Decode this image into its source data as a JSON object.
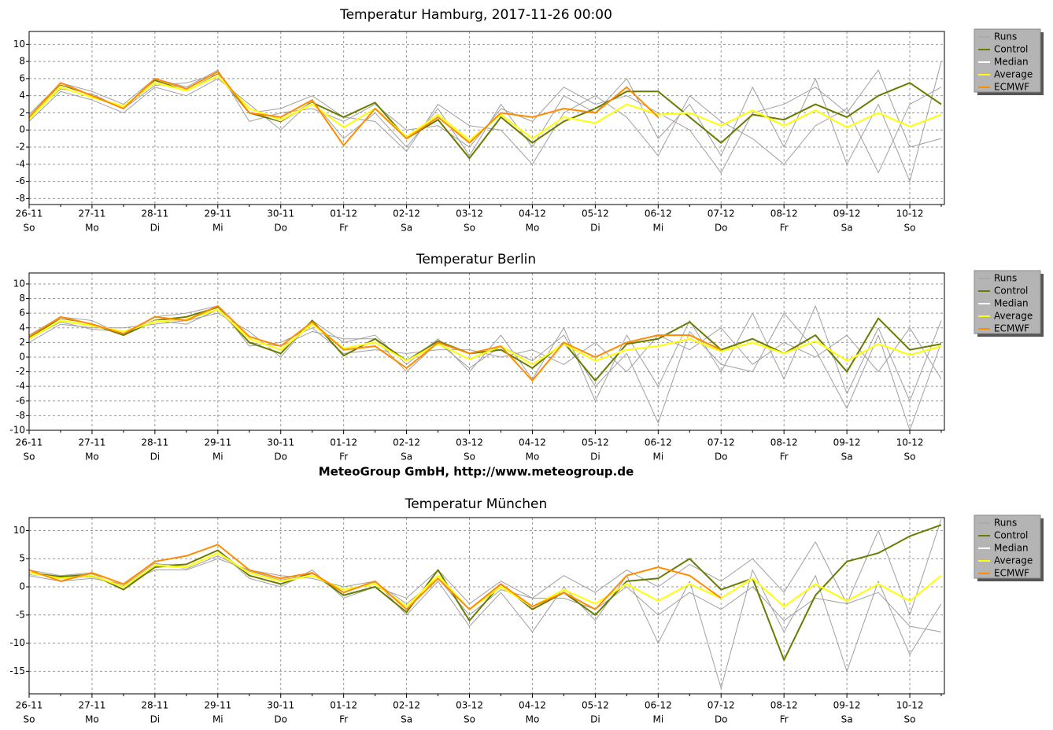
{
  "chart_data": [
    {
      "type": "line",
      "title": "Temperatur Hamburg, 2017-11-26 00:00",
      "categories": [
        "26-11",
        null,
        "27-11",
        null,
        "28-11",
        null,
        "29-11",
        null,
        "30-11",
        null,
        "01-12",
        null,
        "02-12",
        null,
        "03-12",
        null,
        "04-12",
        null,
        "05-12",
        null,
        "06-12",
        null,
        "07-12",
        null,
        "08-12",
        null,
        "09-12",
        null,
        "10-12",
        null
      ],
      "weekdays": [
        "So",
        null,
        "Mo",
        null,
        "Di",
        null,
        "Mi",
        null,
        "Do",
        null,
        "Fr",
        null,
        "Sa",
        null,
        "So",
        null,
        "Mo",
        null,
        "Di",
        null,
        "Mi",
        null,
        "Do",
        null,
        "Fr",
        null,
        "Sa",
        null,
        "So",
        null
      ],
      "ylim": [
        -8.7,
        11.5
      ],
      "yticks": [
        -8,
        -6,
        -4,
        -2,
        0,
        2,
        4,
        6,
        8,
        10
      ],
      "grid": true,
      "series": [
        {
          "name": "Runs",
          "color": "#a0a0a0",
          "values": [
            [
              1.0,
              4.5,
              3.5,
              2.0,
              5.0,
              4.0,
              6.0,
              3.0,
              0.0,
              3.5,
              -1.0,
              2.0,
              -2.0,
              2.5,
              -3.0,
              3.0,
              -2.0,
              4.0,
              2.0,
              6.0,
              -1.0,
              3.0,
              -3.0,
              5.0,
              -2.0,
              6.0,
              -4.0,
              3.0,
              -6.0,
              8.0
            ],
            [
              1.8,
              5.5,
              4.5,
              3.0,
              6.0,
              5.0,
              7.0,
              1.0,
              2.0,
              2.5,
              1.0,
              3.0,
              0.0,
              0.5,
              -2.0,
              2.5,
              1.0,
              5.0,
              3.0,
              4.0,
              2.0,
              0.0,
              -5.0,
              2.0,
              3.0,
              5.0,
              2.0,
              7.0,
              -2.0,
              -1.0
            ],
            [
              1.5,
              4.8,
              4.2,
              2.5,
              5.2,
              5.5,
              6.5,
              2.0,
              2.5,
              4.0,
              1.5,
              1.0,
              -2.5,
              3.0,
              0.5,
              0.0,
              -4.0,
              2.0,
              4.0,
              1.5,
              -3.0,
              4.0,
              1.0,
              -1.0,
              -4.0,
              0.5,
              2.5,
              -5.0,
              3.0,
              5.0
            ]
          ]
        },
        {
          "name": "Control",
          "color": "#6b7a00",
          "values": [
            1.3,
            5.2,
            4.0,
            2.6,
            5.8,
            4.5,
            6.5,
            2.0,
            1.0,
            3.2,
            1.5,
            3.2,
            -1.0,
            1.2,
            -3.3,
            1.5,
            -1.5,
            1.0,
            2.5,
            4.5,
            4.5,
            1.5,
            -1.5,
            1.8,
            1.2,
            3.0,
            1.5,
            4.0,
            5.5,
            3.0
          ]
        },
        {
          "name": "Median",
          "color": "#ffffff",
          "values": [
            1.3,
            5.1,
            3.9,
            2.7,
            5.6,
            4.5,
            6.4,
            2.3,
            1.1,
            3.1,
            0.2,
            2.6,
            -0.9,
            1.7,
            -1.3,
            1.9,
            -1.1,
            1.4,
            0.9,
            3.1,
            1.7,
            2.1,
            0.4,
            2.4,
            0.4,
            2.4,
            0.2,
            2.1,
            0.3,
            1.9
          ]
        },
        {
          "name": "Average",
          "color": "#ffff00",
          "values": [
            1.3,
            5.0,
            3.8,
            2.8,
            5.5,
            4.6,
            6.3,
            2.5,
            1.2,
            3.0,
            0.3,
            2.5,
            -0.8,
            1.8,
            -1.2,
            1.8,
            -1.0,
            1.5,
            0.8,
            3.0,
            1.8,
            2.0,
            0.5,
            2.3,
            0.5,
            2.3,
            0.3,
            2.0,
            0.4,
            1.8
          ]
        },
        {
          "name": "ECMWF",
          "color": "#ff8c00",
          "values": [
            1.5,
            5.5,
            4.0,
            2.5,
            6.0,
            4.8,
            6.8,
            2.0,
            1.5,
            3.5,
            -1.8,
            2.5,
            -1.0,
            1.5,
            -1.5,
            2.0,
            1.5,
            2.5,
            2.0,
            5.0,
            1.5,
            null,
            null,
            null,
            null,
            null,
            null,
            null,
            null,
            null
          ]
        }
      ]
    },
    {
      "type": "line",
      "title": "Temperatur Berlin",
      "categories": [
        "26-11",
        null,
        "27-11",
        null,
        "28-11",
        null,
        "29-11",
        null,
        "30-11",
        null,
        "01-12",
        null,
        "02-12",
        null,
        "03-12",
        null,
        "04-12",
        null,
        "05-12",
        null,
        "06-12",
        null,
        "07-12",
        null,
        "08-12",
        null,
        "09-12",
        null,
        "10-12",
        null
      ],
      "weekdays": [
        "So",
        null,
        "Mo",
        null,
        "Di",
        null,
        "Mi",
        null,
        "Do",
        null,
        "Fr",
        null,
        "Sa",
        null,
        "So",
        null,
        "Mo",
        null,
        "Di",
        null,
        "Mi",
        null,
        "Do",
        null,
        "Fr",
        null,
        "Sa",
        null,
        "So",
        null
      ],
      "ylim": [
        -10,
        11.5
      ],
      "yticks": [
        -10,
        -8,
        -6,
        -4,
        -2,
        0,
        2,
        4,
        6,
        8,
        10
      ],
      "grid": true,
      "series": [
        {
          "name": "Runs",
          "color": "#a0a0a0",
          "values": [
            [
              2.0,
              4.5,
              4.0,
              4.0,
              4.5,
              5.0,
              6.0,
              3.5,
              0.0,
              5.0,
              2.0,
              3.0,
              -1.0,
              2.5,
              -2.0,
              3.0,
              -3.0,
              4.0,
              -6.0,
              3.0,
              -4.0,
              5.0,
              -2.0,
              6.0,
              -3.0,
              7.0,
              -5.0,
              4.0,
              -6.0,
              5.0
            ],
            [
              3.0,
              5.5,
              5.0,
              3.0,
              5.5,
              6.0,
              7.0,
              1.5,
              2.0,
              4.0,
              0.5,
              1.0,
              0.5,
              1.0,
              1.0,
              0.0,
              1.0,
              -1.0,
              2.0,
              -2.0,
              3.0,
              1.0,
              4.0,
              -1.0,
              2.0,
              0.0,
              3.0,
              -2.0,
              4.0,
              -3.0
            ],
            [
              2.5,
              4.8,
              3.8,
              3.5,
              5.0,
              4.5,
              6.5,
              2.0,
              1.5,
              3.5,
              2.5,
              2.5,
              -2.0,
              2.0,
              -1.5,
              1.5,
              -0.5,
              3.0,
              -4.0,
              0.5,
              -9.0,
              3.5,
              -1.0,
              -2.0,
              6.0,
              1.0,
              -7.0,
              3.0,
              -10.0,
              2.0
            ]
          ]
        },
        {
          "name": "Control",
          "color": "#6b7a00",
          "values": [
            2.7,
            5.2,
            4.5,
            3.0,
            5.0,
            5.5,
            6.8,
            2.0,
            0.5,
            5.0,
            0.2,
            2.5,
            -0.5,
            2.2,
            0.5,
            1.0,
            -1.5,
            2.0,
            -3.2,
            1.8,
            2.5,
            4.8,
            1.0,
            2.5,
            0.5,
            3.0,
            -2.0,
            5.3,
            1.0,
            1.8
          ]
        },
        {
          "name": "Median",
          "color": "#ffffff",
          "values": [
            2.4,
            5.1,
            4.4,
            3.4,
            4.9,
            5.1,
            6.6,
            2.4,
            0.9,
            4.6,
            1.1,
            2.1,
            -0.6,
            1.9,
            -0.4,
            1.6,
            -1.1,
            1.9,
            -0.6,
            1.1,
            1.4,
            2.6,
            0.7,
            2.1,
            0.4,
            2.3,
            -0.6,
            1.9,
            0.2,
            1.6
          ]
        },
        {
          "name": "Average",
          "color": "#ffff00",
          "values": [
            2.5,
            5.0,
            4.3,
            3.5,
            4.8,
            5.2,
            6.5,
            2.5,
            1.0,
            4.5,
            1.2,
            2.0,
            -0.5,
            1.8,
            -0.3,
            1.5,
            -1.0,
            1.8,
            -0.5,
            1.0,
            1.5,
            2.5,
            0.8,
            2.0,
            0.5,
            2.2,
            -0.5,
            1.8,
            0.3,
            1.5
          ]
        },
        {
          "name": "ECMWF",
          "color": "#ff8c00",
          "values": [
            2.8,
            5.5,
            4.5,
            3.2,
            5.5,
            5.0,
            7.0,
            2.8,
            1.5,
            4.8,
            1.0,
            1.5,
            -1.5,
            2.0,
            0.5,
            1.5,
            -3.2,
            2.0,
            0.0,
            2.0,
            3.0,
            3.0,
            1.0,
            null,
            null,
            null,
            null,
            null,
            null,
            null
          ]
        }
      ]
    },
    {
      "type": "line",
      "title": "Temperatur München",
      "categories": [
        "26-11",
        null,
        "27-11",
        null,
        "28-11",
        null,
        "29-11",
        null,
        "30-11",
        null,
        "01-12",
        null,
        "02-12",
        null,
        "03-12",
        null,
        "04-12",
        null,
        "05-12",
        null,
        "06-12",
        null,
        "07-12",
        null,
        "08-12",
        null,
        "09-12",
        null,
        "10-12",
        null
      ],
      "weekdays": [
        "So",
        null,
        "Mo",
        null,
        "Di",
        null,
        "Mi",
        null,
        "Do",
        null,
        "Fr",
        null,
        "Sa",
        null,
        "So",
        null,
        "Mo",
        null,
        "Di",
        null,
        "Mi",
        null,
        "Do",
        null,
        "Fr",
        null,
        "Sa",
        null,
        "So",
        null
      ],
      "ylim": [
        -19,
        12.3
      ],
      "yticks": [
        -15,
        -10,
        -5,
        0,
        5,
        10
      ],
      "grid": true,
      "series": [
        {
          "name": "Runs",
          "color": "#a0a0a0",
          "values": [
            [
              2.0,
              1.0,
              1.5,
              0.5,
              3.0,
              3.0,
              5.0,
              3.0,
              2.0,
              1.5,
              0.0,
              1.0,
              -5.0,
              1.0,
              -7.0,
              -1.0,
              -8.0,
              0.0,
              -6.0,
              2.0,
              -10.0,
              1.0,
              -18.0,
              3.0,
              -8.0,
              2.0,
              -15.0,
              1.0,
              -12.0,
              -3.0
            ],
            [
              3.0,
              2.0,
              2.5,
              -0.5,
              4.0,
              4.0,
              6.5,
              1.5,
              0.0,
              3.0,
              -2.0,
              0.0,
              -2.0,
              3.0,
              -3.0,
              1.0,
              -2.0,
              2.0,
              -1.0,
              3.0,
              0.0,
              4.0,
              1.0,
              5.0,
              -1.0,
              8.0,
              -3.0,
              10.0,
              -5.0,
              12.0
            ],
            [
              2.2,
              1.5,
              1.8,
              0.2,
              4.2,
              3.2,
              5.5,
              2.8,
              1.2,
              2.2,
              -1.0,
              0.8,
              -3.0,
              1.5,
              -5.0,
              -0.5,
              -2.0,
              -2.0,
              -4.0,
              0.0,
              -5.0,
              -1.0,
              -4.0,
              0.0,
              -6.0,
              -2.0,
              -3.0,
              -1.0,
              -7.0,
              -8.0
            ]
          ]
        },
        {
          "name": "Control",
          "color": "#6b7a00",
          "values": [
            2.5,
            1.8,
            2.2,
            -0.5,
            3.5,
            4.0,
            6.5,
            2.0,
            0.5,
            2.5,
            -1.5,
            0.0,
            -4.5,
            3.0,
            -6.0,
            0.5,
            -4.0,
            -1.0,
            -5.0,
            1.0,
            1.5,
            5.0,
            -0.5,
            1.5,
            -13.0,
            -1.5,
            4.5,
            6.0,
            9.0,
            11.0
          ]
        },
        {
          "name": "Median",
          "color": "#ffffff",
          "values": [
            2.4,
            1.4,
            2.1,
            -0.1,
            3.9,
            3.4,
            6.1,
            2.4,
            0.9,
            2.1,
            -0.6,
            0.6,
            -3.6,
            2.1,
            -4.1,
            0.1,
            -3.6,
            -0.4,
            -3.1,
            0.6,
            -2.6,
            0.6,
            -2.1,
            1.6,
            -3.6,
            0.6,
            -2.6,
            0.6,
            -2.6,
            2.1
          ]
        },
        {
          "name": "Average",
          "color": "#ffff00",
          "values": [
            2.5,
            1.5,
            2.0,
            0.0,
            3.8,
            3.5,
            6.0,
            2.5,
            1.0,
            2.0,
            -0.5,
            0.5,
            -3.5,
            2.0,
            -4.0,
            0.0,
            -3.5,
            -0.5,
            -3.0,
            0.5,
            -2.5,
            0.5,
            -2.0,
            1.5,
            -3.5,
            0.5,
            -2.5,
            0.5,
            -2.5,
            2.0
          ]
        },
        {
          "name": "ECMWF",
          "color": "#ff8c00",
          "values": [
            3.0,
            1.0,
            2.5,
            0.5,
            4.5,
            5.5,
            7.5,
            3.0,
            1.5,
            2.5,
            -1.0,
            1.0,
            -4.0,
            1.5,
            -4.0,
            0.5,
            -3.5,
            -1.0,
            -4.0,
            2.0,
            3.5,
            2.0,
            -2.0,
            null,
            null,
            null,
            null,
            null,
            null,
            null
          ]
        }
      ]
    }
  ],
  "footer": "MeteoGroup GmbH, http://www.meteogroup.de"
}
